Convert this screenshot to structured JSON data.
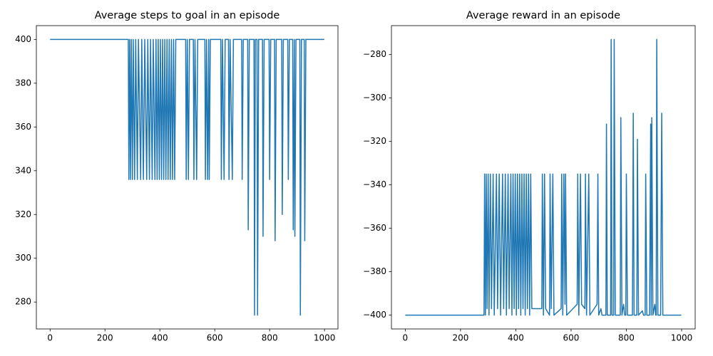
{
  "chart_data": [
    {
      "type": "line",
      "title": "Average steps to goal in an episode",
      "x": [
        0,
        285,
        287,
        290,
        293,
        296,
        300,
        303,
        308,
        312,
        318,
        322,
        330,
        334,
        340,
        345,
        352,
        356,
        362,
        366,
        372,
        376,
        382,
        386,
        390,
        394,
        398,
        402,
        406,
        410,
        414,
        418,
        422,
        426,
        430,
        434,
        438,
        442,
        446,
        450,
        454,
        458,
        494,
        496,
        500,
        504,
        508,
        522,
        524,
        528,
        534,
        538,
        564,
        566,
        570,
        574,
        578,
        580,
        584,
        622,
        624,
        628,
        634,
        638,
        650,
        652,
        656,
        664,
        668,
        698,
        700,
        704,
        720,
        722,
        726,
        743,
        745,
        748,
        754,
        756,
        760,
        774,
        776,
        780,
        798,
        800,
        804,
        818,
        820,
        824,
        844,
        846,
        850,
        866,
        868,
        872,
        884,
        886,
        890,
        892,
        896,
        910,
        912,
        916,
        926,
        928,
        932,
        999
      ],
      "series": [
        {
          "color": "#1f77b4",
          "values": [
            400,
            400,
            336,
            400,
            336,
            400,
            336,
            400,
            336,
            400,
            336,
            400,
            336,
            400,
            336,
            400,
            336,
            400,
            336,
            400,
            336,
            400,
            336,
            400,
            336,
            400,
            336,
            400,
            336,
            400,
            336,
            400,
            336,
            400,
            336,
            400,
            336,
            400,
            336,
            400,
            336,
            400,
            400,
            336,
            400,
            336,
            400,
            400,
            336,
            400,
            336,
            400,
            400,
            336,
            400,
            336,
            400,
            336,
            400,
            400,
            336,
            400,
            336,
            400,
            400,
            336,
            400,
            336,
            400,
            400,
            336,
            400,
            400,
            313,
            400,
            400,
            274,
            400,
            400,
            274,
            400,
            400,
            310,
            400,
            400,
            336,
            400,
            400,
            308,
            400,
            400,
            320,
            400,
            400,
            336,
            400,
            400,
            313,
            400,
            310,
            400,
            400,
            274,
            400,
            400,
            308,
            400,
            400
          ]
        }
      ],
      "xlim": [
        -50,
        1049
      ],
      "xticks": [
        0,
        200,
        400,
        600,
        800,
        1000
      ],
      "ylim": [
        267.7,
        406.3
      ],
      "yticks": [
        280,
        300,
        320,
        340,
        360,
        380,
        400
      ]
    },
    {
      "type": "line",
      "title": "Average reward in an episode",
      "x": [
        0,
        285,
        287,
        290,
        293,
        296,
        300,
        303,
        308,
        312,
        318,
        322,
        330,
        334,
        340,
        345,
        352,
        356,
        362,
        366,
        372,
        376,
        382,
        386,
        390,
        394,
        398,
        402,
        406,
        410,
        414,
        418,
        422,
        426,
        430,
        434,
        438,
        442,
        446,
        450,
        454,
        458,
        494,
        496,
        500,
        504,
        508,
        522,
        524,
        528,
        534,
        538,
        564,
        566,
        570,
        574,
        578,
        580,
        584,
        622,
        624,
        628,
        634,
        638,
        650,
        652,
        656,
        664,
        668,
        694,
        697,
        700,
        708,
        712,
        726,
        728,
        731,
        743,
        745,
        748,
        754,
        756,
        760,
        778,
        780,
        784,
        790,
        794,
        798,
        800,
        804,
        822,
        825,
        828,
        838,
        840,
        844,
        858,
        862,
        868,
        870,
        874,
        884,
        888,
        890,
        892,
        896,
        903,
        906,
        908,
        910,
        914,
        924,
        928,
        932,
        999
      ],
      "series": [
        {
          "color": "#1f77b4",
          "values": [
            -400,
            -400,
            -335,
            -400,
            -335,
            -397,
            -335,
            -400,
            -335,
            -397,
            -335,
            -400,
            -335,
            -397,
            -335,
            -400,
            -335,
            -397,
            -335,
            -400,
            -335,
            -397,
            -335,
            -400,
            -335,
            -397,
            -335,
            -400,
            -335,
            -397,
            -335,
            -400,
            -335,
            -397,
            -335,
            -400,
            -335,
            -397,
            -335,
            -400,
            -335,
            -397,
            -397,
            -335,
            -400,
            -335,
            -397,
            -400,
            -335,
            -397,
            -335,
            -400,
            -397,
            -335,
            -400,
            -335,
            -395,
            -335,
            -400,
            -395,
            -335,
            -400,
            -335,
            -395,
            -397,
            -335,
            -400,
            -335,
            -400,
            -395,
            -335,
            -400,
            -397,
            -400,
            -400,
            -312,
            -400,
            -400,
            -273,
            -400,
            -400,
            -273,
            -400,
            -400,
            -309,
            -400,
            -395,
            -400,
            -400,
            -335,
            -400,
            -400,
            -307,
            -400,
            -400,
            -319,
            -400,
            -398,
            -400,
            -400,
            -335,
            -400,
            -400,
            -312,
            -400,
            -309,
            -400,
            -395,
            -400,
            -400,
            -273,
            -400,
            -400,
            -307,
            -400,
            -400
          ]
        }
      ],
      "xlim": [
        -50,
        1049
      ],
      "xticks": [
        0,
        200,
        400,
        600,
        800,
        1000
      ],
      "ylim": [
        -406.35,
        -266.65
      ],
      "yticks": [
        {
          "value": -400,
          "label": "−400"
        },
        {
          "value": -380,
          "label": "−380"
        },
        {
          "value": -360,
          "label": "−360"
        },
        {
          "value": -340,
          "label": "−340"
        },
        {
          "value": -320,
          "label": "−320"
        },
        {
          "value": -300,
          "label": "−300"
        },
        {
          "value": -280,
          "label": "−280"
        }
      ]
    }
  ]
}
